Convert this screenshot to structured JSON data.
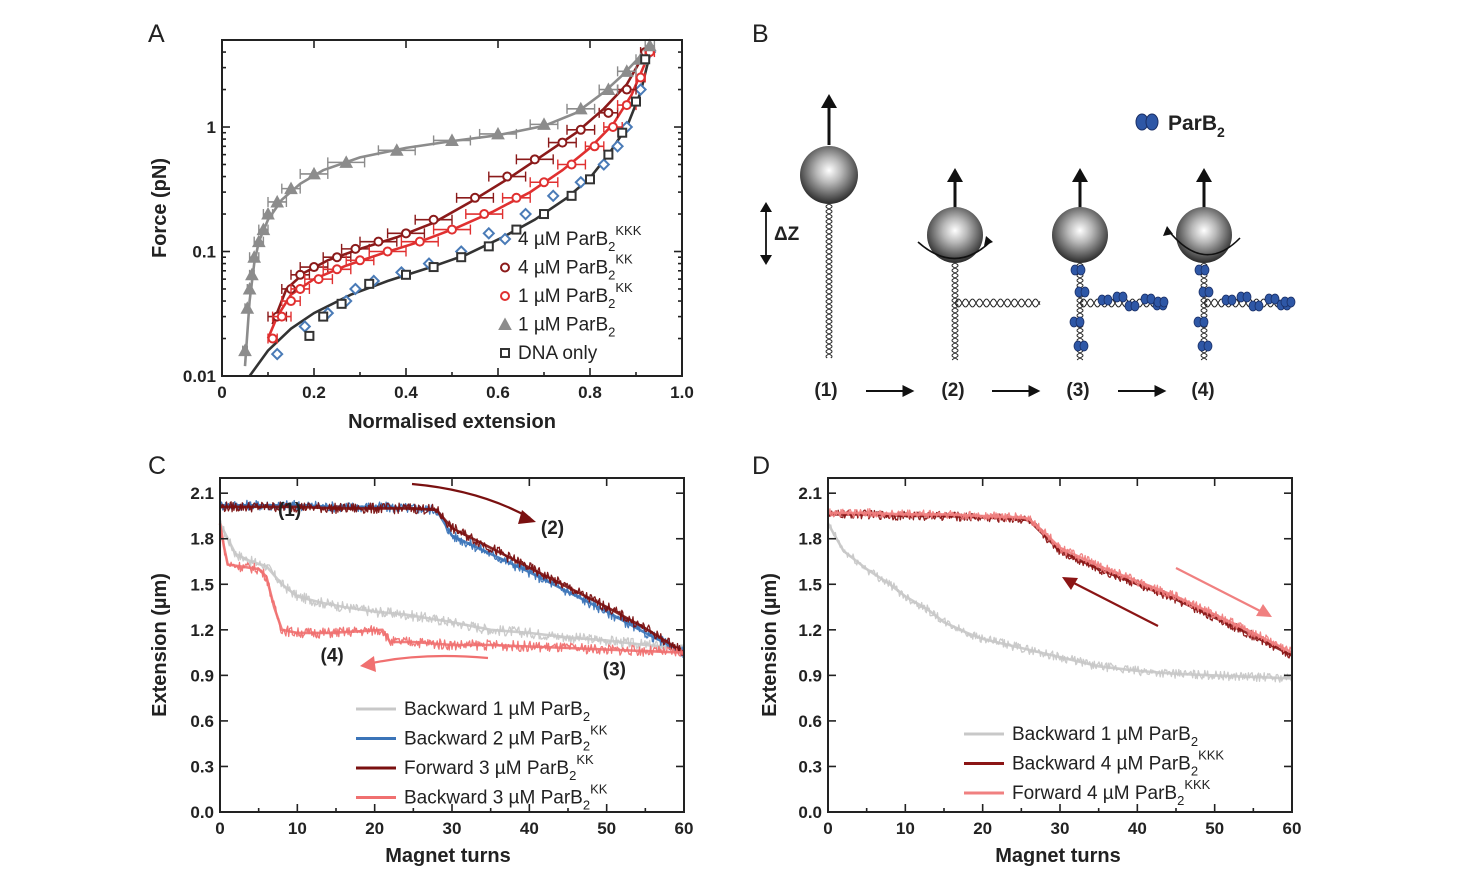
{
  "panels": {
    "A": {
      "letter": "A",
      "chart_data": {
        "type": "scatter",
        "xlabel": "Normalised extension",
        "ylabel": "Force (pN)",
        "xlim": [
          0,
          1.0
        ],
        "ylim": [
          0.01,
          5
        ],
        "yscale": "log",
        "xticks": [
          "0",
          "0.2",
          "0.4",
          "0.6",
          "0.8",
          "1.0"
        ],
        "yticks": [
          "0.01",
          "0.1",
          "1"
        ],
        "legend_position": "bottom-right",
        "series": [
          {
            "key": "kkk4",
            "label_main": "4 µM ParB",
            "label_sub": "2",
            "label_sup": "KKK",
            "color": "#4a7bb7",
            "marker": "diamond",
            "x": [
              0.12,
              0.18,
              0.23,
              0.27,
              0.29,
              0.33,
              0.39,
              0.45,
              0.52,
              0.58,
              0.66,
              0.72,
              0.78,
              0.83,
              0.86,
              0.88,
              0.91,
              0.93
            ],
            "y": [
              0.015,
              0.025,
              0.032,
              0.04,
              0.05,
              0.058,
              0.068,
              0.08,
              0.1,
              0.14,
              0.2,
              0.28,
              0.36,
              0.5,
              0.7,
              1.0,
              2.0,
              4.0
            ]
          },
          {
            "key": "kk4",
            "label_main": "4 µM ParB",
            "label_sub": "2",
            "label_sup": "KK",
            "color": "#8b1a1a",
            "marker": "circle",
            "fit": true,
            "x": [
              0.12,
              0.15,
              0.17,
              0.2,
              0.25,
              0.29,
              0.34,
              0.4,
              0.46,
              0.55,
              0.62,
              0.68,
              0.74,
              0.78,
              0.84,
              0.88,
              0.92
            ],
            "y": [
              0.03,
              0.05,
              0.065,
              0.075,
              0.09,
              0.105,
              0.12,
              0.14,
              0.18,
              0.27,
              0.4,
              0.55,
              0.75,
              0.95,
              1.3,
              2.0,
              4.0
            ],
            "xerr": [
              0.02,
              0.02,
              0.02,
              0.03,
              0.03,
              0.03,
              0.04,
              0.04,
              0.04,
              0.04,
              0.04,
              0.04,
              0.03,
              0.03,
              0.02,
              0.02,
              0.01
            ]
          },
          {
            "key": "kk1",
            "label_main": "1 µM ParB",
            "label_sub": "2",
            "label_sup": "KK",
            "color": "#e03030",
            "marker": "circle",
            "fit": true,
            "x": [
              0.11,
              0.13,
              0.15,
              0.17,
              0.21,
              0.25,
              0.3,
              0.36,
              0.43,
              0.5,
              0.57,
              0.64,
              0.7,
              0.76,
              0.81,
              0.85,
              0.88,
              0.91,
              0.93
            ],
            "y": [
              0.02,
              0.03,
              0.04,
              0.05,
              0.06,
              0.072,
              0.085,
              0.1,
              0.12,
              0.15,
              0.2,
              0.27,
              0.36,
              0.5,
              0.7,
              1.0,
              1.5,
              2.5,
              4.0
            ],
            "xerr": [
              0.01,
              0.02,
              0.02,
              0.02,
              0.03,
              0.03,
              0.03,
              0.04,
              0.04,
              0.04,
              0.04,
              0.03,
              0.03,
              0.03,
              0.02,
              0.02,
              0.02,
              0.01,
              0.01
            ]
          },
          {
            "key": "wt1",
            "label_main": "1 µM ParB",
            "label_sub": "2",
            "label_sup": "",
            "color": "#8c8c8c",
            "marker": "triangle",
            "fit": true,
            "x": [
              0.05,
              0.055,
              0.06,
              0.065,
              0.07,
              0.08,
              0.09,
              0.1,
              0.12,
              0.15,
              0.2,
              0.27,
              0.38,
              0.5,
              0.6,
              0.7,
              0.78,
              0.84,
              0.88,
              0.91,
              0.93
            ],
            "y": [
              0.016,
              0.035,
              0.05,
              0.065,
              0.09,
              0.12,
              0.15,
              0.2,
              0.25,
              0.32,
              0.42,
              0.52,
              0.65,
              0.78,
              0.88,
              1.05,
              1.4,
              2.0,
              2.8,
              3.5,
              4.5
            ],
            "xerr": [
              0.005,
              0.005,
              0.005,
              0.005,
              0.01,
              0.01,
              0.01,
              0.01,
              0.02,
              0.02,
              0.03,
              0.04,
              0.04,
              0.04,
              0.04,
              0.03,
              0.03,
              0.02,
              0.02,
              0.01,
              0.01
            ]
          },
          {
            "key": "dna",
            "label_main": "DNA only",
            "label_sub": "",
            "label_sup": "",
            "color": "#333333",
            "marker": "square",
            "fit": true,
            "x": [
              0.19,
              0.22,
              0.26,
              0.32,
              0.4,
              0.46,
              0.52,
              0.58,
              0.64,
              0.7,
              0.76,
              0.8,
              0.84,
              0.87,
              0.9,
              0.92
            ],
            "y": [
              0.021,
              0.03,
              0.038,
              0.055,
              0.065,
              0.075,
              0.09,
              0.11,
              0.15,
              0.2,
              0.28,
              0.38,
              0.6,
              0.9,
              1.6,
              3.5
            ]
          }
        ],
        "fit_curves": {
          "wt1": {
            "x": [
              0.05,
              0.06,
              0.07,
              0.08,
              0.1,
              0.13,
              0.17,
              0.22,
              0.3,
              0.4,
              0.5,
              0.6,
              0.7,
              0.77,
              0.83,
              0.87,
              0.9,
              0.93
            ],
            "y": [
              0.012,
              0.04,
              0.08,
              0.12,
              0.18,
              0.26,
              0.35,
              0.45,
              0.57,
              0.68,
              0.77,
              0.86,
              1.02,
              1.3,
              1.9,
              2.6,
              3.4,
              4.6
            ]
          },
          "kk4": {
            "x": [
              0.11,
              0.14,
              0.18,
              0.23,
              0.3,
              0.38,
              0.46,
              0.54,
              0.62,
              0.7,
              0.77,
              0.83,
              0.88,
              0.92
            ],
            "y": [
              0.026,
              0.05,
              0.068,
              0.085,
              0.105,
              0.13,
              0.17,
              0.25,
              0.38,
              0.6,
              0.9,
              1.4,
              2.2,
              4.0
            ]
          },
          "kk1": {
            "x": [
              0.1,
              0.12,
              0.15,
              0.2,
              0.27,
              0.35,
              0.43,
              0.51,
              0.59,
              0.67,
              0.74,
              0.8,
              0.85,
              0.89,
              0.93
            ],
            "y": [
              0.02,
              0.03,
              0.045,
              0.06,
              0.077,
              0.097,
              0.12,
              0.155,
              0.21,
              0.3,
              0.45,
              0.68,
              1.05,
              1.8,
              4.0
            ]
          },
          "dna": {
            "x": [
              0.06,
              0.1,
              0.15,
              0.2,
              0.28,
              0.36,
              0.45,
              0.53,
              0.61,
              0.68,
              0.75,
              0.8,
              0.84,
              0.88,
              0.91,
              0.93
            ],
            "y": [
              0.01,
              0.016,
              0.024,
              0.032,
              0.045,
              0.058,
              0.074,
              0.094,
              0.13,
              0.18,
              0.27,
              0.39,
              0.6,
              1.0,
              1.9,
              3.8
            ]
          }
        }
      }
    },
    "B": {
      "letter": "B",
      "delta_label": "ΔZ",
      "parb_main": "ParB",
      "parb_sub": "2",
      "steps": [
        "(1)",
        "(2)",
        "(3)",
        "(4)"
      ]
    },
    "C": {
      "letter": "C",
      "chart_data": {
        "type": "line",
        "xlabel": "Magnet turns",
        "ylabel": "Extension (µm)",
        "xlim": [
          0,
          60
        ],
        "ylim": [
          0.0,
          2.2
        ],
        "xticks": [
          "0",
          "10",
          "20",
          "30",
          "40",
          "50",
          "60"
        ],
        "yticks": [
          "0.0",
          "0.3",
          "0.6",
          "0.9",
          "1.2",
          "1.5",
          "1.8",
          "2.1"
        ],
        "legend_position": "bottom-right",
        "series": [
          {
            "label_main": "Backward 1 µM ParB",
            "label_sub": "2",
            "label_sup": "",
            "color": "#c8c8c8",
            "x": [
              0,
              2,
              4,
              6,
              8,
              10,
              13,
              16,
              20,
              24,
              30,
              35,
              40,
              45,
              50,
              55,
              60
            ],
            "y": [
              1.9,
              1.7,
              1.65,
              1.62,
              1.5,
              1.42,
              1.38,
              1.35,
              1.32,
              1.3,
              1.25,
              1.2,
              1.18,
              1.15,
              1.13,
              1.1,
              1.08
            ]
          },
          {
            "label_main": "Backward 2 µM ParB",
            "label_sub": "2",
            "label_sup": "KK",
            "color": "#3b74b8",
            "x": [
              0,
              5,
              10,
              15,
              20,
              25,
              28,
              30,
              35,
              40,
              45,
              50,
              55,
              60
            ],
            "y": [
              2.02,
              2.02,
              2.02,
              2.01,
              2.01,
              2.0,
              1.99,
              1.82,
              1.7,
              1.58,
              1.45,
              1.32,
              1.18,
              1.05
            ]
          },
          {
            "label_main": "Forward 3 µM ParB",
            "label_sub": "2",
            "label_sup": "KK",
            "color": "#7a1010",
            "x": [
              0,
              5,
              10,
              15,
              20,
              25,
              28,
              30,
              35,
              40,
              45,
              50,
              55,
              60
            ],
            "y": [
              2.01,
              2.01,
              2.01,
              2.0,
              2.0,
              2.0,
              1.99,
              1.87,
              1.74,
              1.61,
              1.48,
              1.35,
              1.21,
              1.05
            ]
          },
          {
            "label_main": "Backward 3 µM ParB",
            "label_sub": "2",
            "label_sup": "KK",
            "color": "#f07070",
            "x": [
              0,
              0.5,
              1,
              5,
              6,
              7,
              8,
              10,
              14,
              18,
              21,
              22,
              25,
              30,
              35,
              40,
              45,
              50,
              55,
              60
            ],
            "y": [
              1.9,
              1.75,
              1.63,
              1.6,
              1.55,
              1.35,
              1.2,
              1.18,
              1.18,
              1.19,
              1.2,
              1.12,
              1.12,
              1.1,
              1.1,
              1.09,
              1.08,
              1.07,
              1.06,
              1.05
            ]
          }
        ],
        "annotations": [
          {
            "text": "(1)",
            "x": 9,
            "y": 1.95
          },
          {
            "text": "(2)",
            "x": 43,
            "y": 1.83
          },
          {
            "text": "(3)",
            "x": 51,
            "y": 0.9
          },
          {
            "text": "(4)",
            "x": 14.5,
            "y": 0.99
          }
        ]
      }
    },
    "D": {
      "letter": "D",
      "chart_data": {
        "type": "line",
        "xlabel": "Magnet turns",
        "ylabel": "Extension (µm)",
        "xlim": [
          0,
          60
        ],
        "ylim": [
          0.0,
          2.2
        ],
        "xticks": [
          "0",
          "10",
          "20",
          "30",
          "40",
          "50",
          "60"
        ],
        "yticks": [
          "0.0",
          "0.3",
          "0.6",
          "0.9",
          "1.2",
          "1.5",
          "1.8",
          "2.1"
        ],
        "legend_position": "bottom-right",
        "series": [
          {
            "label_main": "Backward 1 µM ParB",
            "label_sub": "2",
            "label_sup": "",
            "color": "#c8c8c8",
            "x": [
              0,
              2,
              5,
              8,
              10,
              13,
              15,
              18,
              20,
              25,
              30,
              35,
              40,
              45,
              50,
              55,
              60
            ],
            "y": [
              1.9,
              1.72,
              1.6,
              1.5,
              1.42,
              1.33,
              1.25,
              1.18,
              1.14,
              1.08,
              1.02,
              0.96,
              0.93,
              0.91,
              0.9,
              0.89,
              0.88
            ]
          },
          {
            "label_main": "Backward 4 µM ParB",
            "label_sub": "2",
            "label_sup": "KKK",
            "color": "#8b1515",
            "x": [
              0,
              5,
              10,
              15,
              20,
              25,
              26,
              28,
              30,
              35,
              40,
              45,
              50,
              55,
              60
            ],
            "y": [
              1.96,
              1.96,
              1.95,
              1.95,
              1.94,
              1.93,
              1.92,
              1.82,
              1.72,
              1.6,
              1.5,
              1.4,
              1.28,
              1.16,
              1.03
            ]
          },
          {
            "label_main": "Forward 4 µM ParB",
            "label_sub": "2",
            "label_sup": "KKK",
            "color": "#f08080",
            "x": [
              0,
              5,
              10,
              15,
              20,
              25,
              26,
              28,
              30,
              35,
              40,
              45,
              50,
              55,
              60
            ],
            "y": [
              1.97,
              1.97,
              1.96,
              1.96,
              1.95,
              1.94,
              1.93,
              1.84,
              1.74,
              1.62,
              1.52,
              1.42,
              1.3,
              1.18,
              1.05
            ]
          }
        ]
      }
    }
  }
}
